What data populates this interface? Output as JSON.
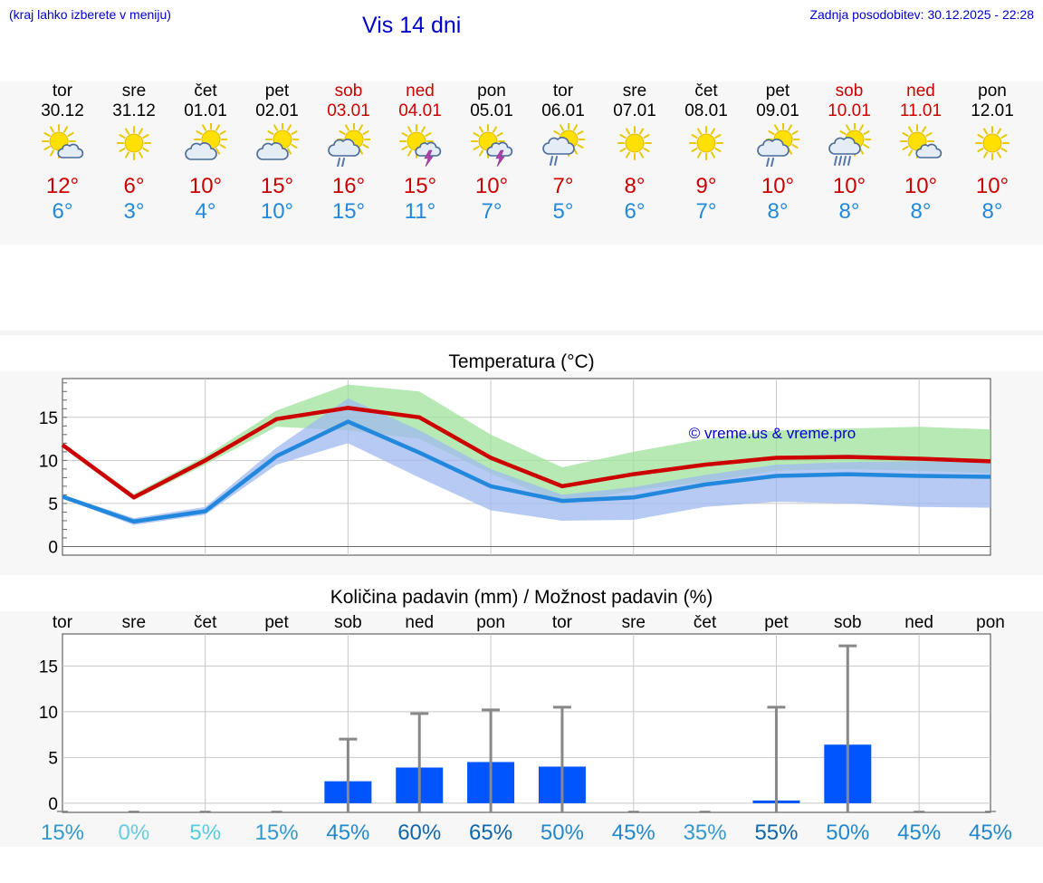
{
  "header": {
    "note": "(kraj lahko izberete v meniju)",
    "title": "Vis 14 dni",
    "updated": "Zadnja posodobitev: 30.12.2025 - 22:28"
  },
  "colors": {
    "weekday": "#000000",
    "weekend": "#cc0000",
    "max_temp": "#cc0000",
    "min_temp": "#2288dd",
    "precip_bar": "#0055ff",
    "band_max": "#9ee29a",
    "band_min": "#9fb8f0"
  },
  "days": [
    {
      "name": "tor",
      "date": "30.12",
      "weekend": false,
      "icon": "sun-cloud-icon",
      "max": "12°",
      "min": "6°"
    },
    {
      "name": "sre",
      "date": "31.12",
      "weekend": false,
      "icon": "sun-icon",
      "max": "6°",
      "min": "3°"
    },
    {
      "name": "čet",
      "date": "01.01",
      "weekend": false,
      "icon": "cloud-sun-icon",
      "max": "10°",
      "min": "4°"
    },
    {
      "name": "pet",
      "date": "02.01",
      "weekend": false,
      "icon": "cloud-sun-icon",
      "max": "15°",
      "min": "10°"
    },
    {
      "name": "sob",
      "date": "03.01",
      "weekend": true,
      "icon": "sun-cloud-rain-icon",
      "max": "16°",
      "min": "15°"
    },
    {
      "name": "ned",
      "date": "04.01",
      "weekend": true,
      "icon": "sun-thunder-icon",
      "max": "15°",
      "min": "11°"
    },
    {
      "name": "pon",
      "date": "05.01",
      "weekend": false,
      "icon": "sun-thunder-icon",
      "max": "10°",
      "min": "7°"
    },
    {
      "name": "tor",
      "date": "06.01",
      "weekend": false,
      "icon": "cloud-sun-rain-icon",
      "max": "7°",
      "min": "5°"
    },
    {
      "name": "sre",
      "date": "07.01",
      "weekend": false,
      "icon": "sun-icon",
      "max": "8°",
      "min": "6°"
    },
    {
      "name": "čet",
      "date": "08.01",
      "weekend": false,
      "icon": "sun-icon",
      "max": "9°",
      "min": "7°"
    },
    {
      "name": "pet",
      "date": "09.01",
      "weekend": false,
      "icon": "sun-cloud-rain-icon",
      "max": "10°",
      "min": "8°"
    },
    {
      "name": "sob",
      "date": "10.01",
      "weekend": true,
      "icon": "cloud-sun-heavy-rain-icon",
      "max": "10°",
      "min": "8°"
    },
    {
      "name": "ned",
      "date": "11.01",
      "weekend": true,
      "icon": "sun-cloud-icon",
      "max": "10°",
      "min": "8°"
    },
    {
      "name": "pon",
      "date": "12.01",
      "weekend": false,
      "icon": "sun-icon",
      "max": "10°",
      "min": "8°"
    }
  ],
  "chart_data": [
    {
      "type": "line",
      "title": "Temperatura (°C)",
      "watermark": "© vreme.us & vreme.pro",
      "xlabel": "",
      "ylabel": "",
      "x": [
        0,
        1,
        2,
        3,
        4,
        5,
        6,
        7,
        8,
        9,
        10,
        11,
        12,
        13
      ],
      "ylim": [
        -1,
        19.5
      ],
      "yticks": [
        0,
        5,
        10,
        15
      ],
      "grid": true,
      "series": [
        {
          "values": [
            11.8,
            5.7,
            10.0,
            14.8,
            16.1,
            15.0,
            10.3,
            7.0,
            8.4,
            9.5,
            10.3,
            10.4,
            10.2,
            9.9
          ],
          "band_low": [
            11.6,
            5.4,
            9.5,
            13.9,
            13.5,
            12.5,
            8.5,
            5.0,
            6.5,
            7.5,
            8.8,
            9.0,
            8.8,
            8.5
          ],
          "band_high": [
            12.0,
            6.1,
            10.5,
            15.8,
            18.8,
            18.0,
            13.0,
            9.2,
            11.0,
            12.5,
            13.5,
            13.7,
            13.9,
            13.6
          ]
        },
        {
          "values": [
            5.8,
            2.9,
            4.1,
            10.5,
            14.5,
            10.9,
            7.0,
            5.3,
            5.7,
            7.2,
            8.2,
            8.4,
            8.2,
            8.1
          ],
          "band_low": [
            5.6,
            2.5,
            3.7,
            9.5,
            12.0,
            8.0,
            4.2,
            3.0,
            3.1,
            4.6,
            5.2,
            5.0,
            4.6,
            4.5
          ],
          "band_high": [
            6.0,
            3.3,
            4.6,
            11.5,
            17.2,
            13.5,
            9.0,
            6.0,
            6.9,
            8.3,
            9.5,
            9.8,
            9.9,
            9.9
          ]
        }
      ]
    },
    {
      "type": "bar",
      "title": "Količina padavin (mm) / Možnost padavin (%)",
      "xlabel": "",
      "ylabel": "",
      "categories": [
        "tor",
        "sre",
        "čet",
        "pet",
        "sob",
        "ned",
        "pon",
        "tor",
        "sre",
        "čet",
        "pet",
        "sob",
        "ned",
        "pon"
      ],
      "ylim": [
        -1,
        18.5
      ],
      "yticks": [
        0,
        5,
        10,
        15
      ],
      "grid": true,
      "values": [
        0,
        0,
        0,
        0,
        2.4,
        3.9,
        4.5,
        4.0,
        0,
        0,
        0.3,
        6.4,
        0,
        0
      ],
      "error_high": [
        0,
        0,
        0,
        0,
        7.0,
        9.8,
        10.2,
        10.5,
        0,
        0,
        10.5,
        17.2,
        0,
        0
      ],
      "chance": [
        "15%",
        "0%",
        "5%",
        "15%",
        "45%",
        "60%",
        "65%",
        "50%",
        "45%",
        "35%",
        "55%",
        "50%",
        "45%",
        "45%"
      ],
      "chance_colors": [
        "#3399cc",
        "#66ccdd",
        "#55ccdd",
        "#3399cc",
        "#2288cc",
        "#1166aa",
        "#1166aa",
        "#2288cc",
        "#2288cc",
        "#3399cc",
        "#1166aa",
        "#2288cc",
        "#2288cc",
        "#2288cc"
      ]
    }
  ]
}
